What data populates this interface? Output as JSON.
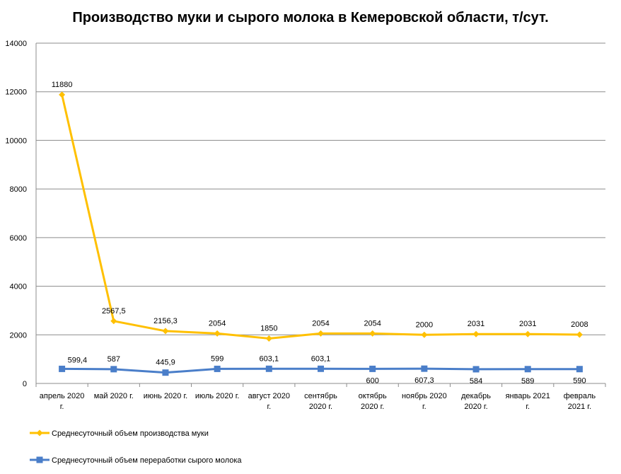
{
  "chart_data": {
    "type": "line",
    "title": "Производство муки и сырого молока в Кемеровской области, т/сут.",
    "categories": [
      [
        "апрель 2020",
        "г."
      ],
      [
        "май 2020 г."
      ],
      [
        "июнь 2020 г."
      ],
      [
        "июль 2020 г."
      ],
      [
        "август 2020",
        "г."
      ],
      [
        "сентябрь",
        "2020 г."
      ],
      [
        "октябрь",
        "2020 г."
      ],
      [
        "ноябрь 2020",
        "г."
      ],
      [
        "декабрь",
        "2020 г."
      ],
      [
        "январь 2021",
        "г."
      ],
      [
        "февраль",
        "2021 г."
      ]
    ],
    "ylim": [
      0,
      14000
    ],
    "yticks": [
      "0",
      "2000",
      "4000",
      "6000",
      "8000",
      "10000",
      "12000",
      "14000"
    ],
    "grid": true,
    "legend_position": "bottom-left",
    "series": [
      {
        "name": "Среднесуточный объем производства муки",
        "color": "#FFC000",
        "marker": "diamond",
        "values": [
          11880,
          2567.5,
          2156.3,
          2054,
          1850,
          2054,
          2054,
          2000,
          2031,
          2031,
          2008
        ],
        "labels": [
          "11880",
          "2567,5",
          "2156,3",
          "2054",
          "1850",
          "2054",
          "2054",
          "2000",
          "2031",
          "2031",
          "2008"
        ],
        "label_side": [
          "above",
          "above",
          "above",
          "above",
          "above",
          "above",
          "above",
          "above",
          "above",
          "above",
          "above"
        ]
      },
      {
        "name": "Среднесуточный объем переработки сырого молока",
        "color": "#4A7EC9",
        "marker": "square",
        "values": [
          599.4,
          587,
          445.9,
          599,
          603.1,
          603.1,
          600,
          607.3,
          584,
          589,
          590
        ],
        "labels": [
          "599,4",
          "587",
          "445,9",
          "599",
          "603,1",
          "603,1",
          "600",
          "607,3",
          "584",
          "589",
          "590"
        ],
        "label_side": [
          "right",
          "above",
          "above",
          "above",
          "above",
          "above",
          "below",
          "below",
          "below",
          "below",
          "below"
        ]
      }
    ]
  }
}
